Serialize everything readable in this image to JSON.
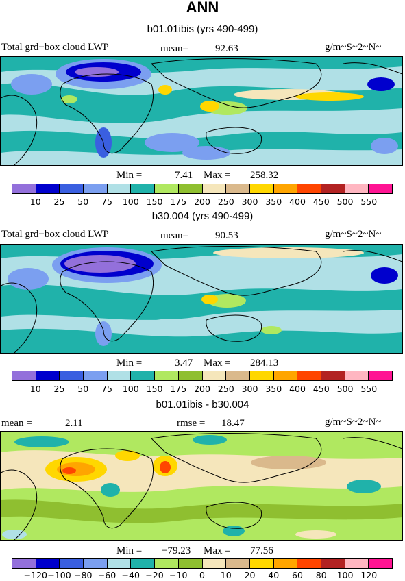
{
  "main_title": "ANN",
  "colors": {
    "lwp_palette": [
      "#9370db",
      "#0000cd",
      "#3a5fe0",
      "#7b9ff0",
      "#b0e0e6",
      "#20b2aa",
      "#b0e860",
      "#8fbf30",
      "#f5e6bb",
      "#dab98c",
      "#ffd700",
      "#ffa500",
      "#ff4500",
      "#b22222",
      "#ffb6c1",
      "#ff1493"
    ],
    "diff_palette": [
      "#9370db",
      "#0000cd",
      "#3a5fe0",
      "#7b9ff0",
      "#b0e0e6",
      "#20b2aa",
      "#b0e860",
      "#8fbf30",
      "#f5e6bb",
      "#dab98c",
      "#ffd700",
      "#ffa500",
      "#ff4500",
      "#b22222",
      "#ffb6c1",
      "#ff1493"
    ]
  },
  "panels": [
    {
      "title": "b01.01ibis (yrs 490-499)",
      "field_label": "Total grd−box cloud LWP",
      "mean_label": "mean=",
      "mean_value": "92.63",
      "units": "g/m~S~2~N~",
      "min_label": "Min =",
      "min_value": "7.41",
      "max_label": "Max =",
      "max_value": "258.32"
    },
    {
      "title": "b30.004 (yrs 490-499)",
      "field_label": "Total grd−box cloud LWP",
      "mean_label": "mean=",
      "mean_value": "90.53",
      "units": "g/m~S~2~N~",
      "min_label": "Min =",
      "min_value": "3.47",
      "max_label": "Max =",
      "max_value": "284.13"
    },
    {
      "title": "b01.01ibis - b30.004",
      "mean_label": "mean =",
      "mean_value": "2.11",
      "rmse_label": "rmse =",
      "rmse_value": "18.47",
      "units": "g/m~S~2~N~",
      "min_label": "Min =",
      "min_value": "−79.23",
      "max_label": "Max =",
      "max_value": "77.56"
    }
  ],
  "chart_data": [
    {
      "type": "heatmap",
      "title": "b01.01ibis (yrs 490-499)",
      "variable": "Total grd−box cloud LWP",
      "units": "g/m~S~2~N~",
      "mean": 92.63,
      "min": 7.41,
      "max": 258.32,
      "colorbar_levels": [
        "10",
        "25",
        "50",
        "75",
        "100",
        "150",
        "175",
        "200",
        "250",
        "300",
        "350",
        "400",
        "450",
        "500",
        "550"
      ]
    },
    {
      "type": "heatmap",
      "title": "b30.004 (yrs 490-499)",
      "variable": "Total grd−box cloud LWP",
      "units": "g/m~S~2~N~",
      "mean": 90.53,
      "min": 3.47,
      "max": 284.13,
      "colorbar_levels": [
        "10",
        "25",
        "50",
        "75",
        "100",
        "150",
        "175",
        "200",
        "250",
        "300",
        "350",
        "400",
        "450",
        "500",
        "550"
      ]
    },
    {
      "type": "heatmap",
      "title": "b01.01ibis - b30.004",
      "units": "g/m~S~2~N~",
      "mean": 2.11,
      "rmse": 18.47,
      "min": -79.23,
      "max": 77.56,
      "colorbar_levels": [
        "−120",
        "−100",
        "−80",
        "−60",
        "−40",
        "−20",
        "−10",
        "0",
        "10",
        "20",
        "40",
        "60",
        "80",
        "100",
        "120"
      ]
    }
  ]
}
